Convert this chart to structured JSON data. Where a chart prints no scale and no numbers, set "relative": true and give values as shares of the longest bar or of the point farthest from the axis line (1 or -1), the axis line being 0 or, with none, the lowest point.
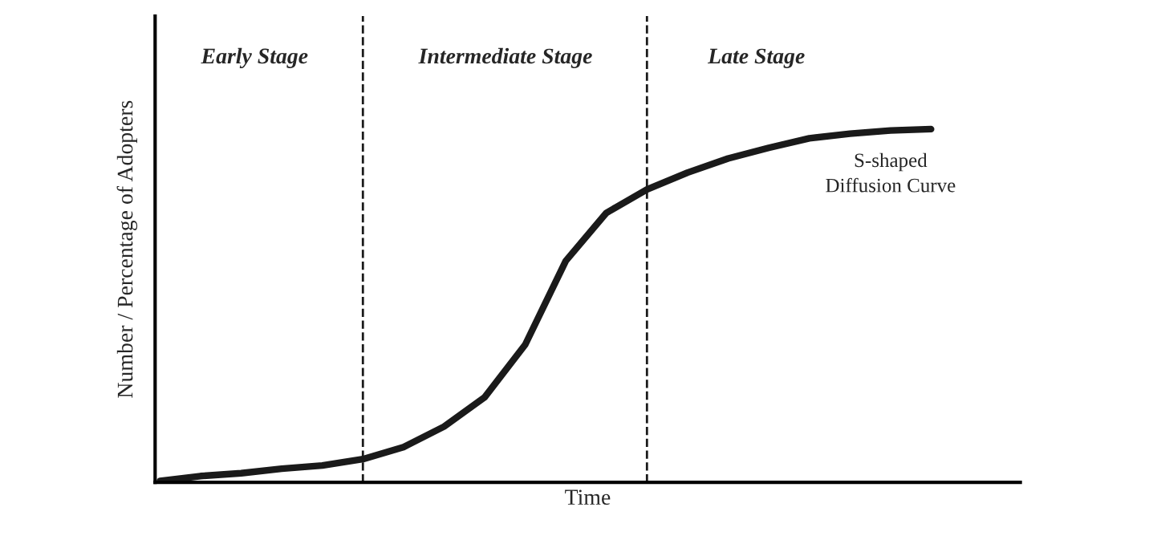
{
  "chart_data": {
    "type": "line",
    "relative": true,
    "xlabel": "Time",
    "ylabel": "Number / Percentage of Adopters",
    "categories": [
      null,
      null,
      null,
      null,
      null,
      null,
      null,
      null,
      null,
      null,
      null,
      null,
      null,
      null,
      null,
      null,
      null,
      null,
      null,
      null
    ],
    "series": [
      {
        "color": "#1a1a1a",
        "values": [
          0.004,
          0.018,
          0.026,
          0.039,
          0.048,
          0.066,
          0.1,
          0.158,
          0.241,
          0.39,
          0.627,
          0.763,
          0.829,
          0.877,
          0.917,
          0.947,
          0.974,
          0.987,
          0.996,
          1.0
        ]
      }
    ],
    "annotations": [
      "Early Stage",
      "Intermediate Stage",
      "Late Stage",
      "S-shaped\nDiffusion Curve"
    ],
    "legend": false,
    "line_style": "solid",
    "marker": "none"
  }
}
